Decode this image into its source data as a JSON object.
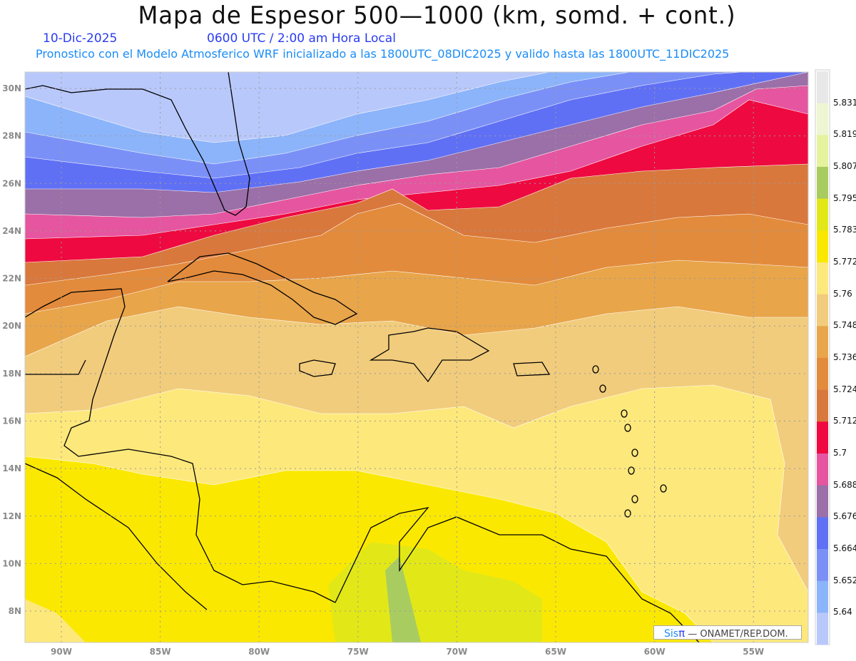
{
  "header": {
    "title": "Mapa de Espesor 500—1000 (km, somd. + cont.)",
    "date": "10-Dic-2025",
    "time": "0600 UTC / 2:00 am Hora Local",
    "subtitle": "Pronostico con el Modelo Atmosferico WRF inicializado a las 1800UTC_08DIC2025 y valido hasta las  1800UTC_11DIC2025"
  },
  "map": {
    "lat_labels": [
      "30N",
      "28N",
      "26N",
      "24N",
      "22N",
      "20N",
      "18N",
      "16N",
      "14N",
      "12N",
      "10N",
      "8N"
    ],
    "lon_labels": [
      "90W",
      "85W",
      "80W",
      "75W",
      "70W",
      "65W",
      "60W",
      "55W"
    ],
    "grid_lats": [
      30,
      28,
      26,
      24,
      22,
      20,
      18,
      16,
      14,
      12,
      10,
      8
    ],
    "grid_lons": [
      -90,
      -85,
      -80,
      -75,
      -70,
      -65,
      -60,
      -55
    ]
  },
  "colorbar": {
    "labels": [
      "5.831",
      "5.819",
      "5.807",
      "5.795",
      "5.783",
      "5.772",
      "5.76",
      "5.748",
      "5.736",
      "5.724",
      "5.712",
      "5.7",
      "5.688",
      "5.676",
      "5.664",
      "5.652",
      "5.64"
    ],
    "colors": [
      "#e8e8e8",
      "#eef5d2",
      "#e5f29e",
      "#a9cc60",
      "#e2e817",
      "#fbe800",
      "#fde87c",
      "#f1cc7c",
      "#e8a54a",
      "#e38b3c",
      "#d9783c",
      "#ee0a40",
      "#e655a0",
      "#9b6fa8",
      "#6070f5",
      "#7b90f7",
      "#8cb4fa",
      "#b9c8fb"
    ]
  },
  "logo": {
    "sis": "Sis",
    "pi": "π",
    "text": " —  ONAMET/REP.DOM."
  }
}
